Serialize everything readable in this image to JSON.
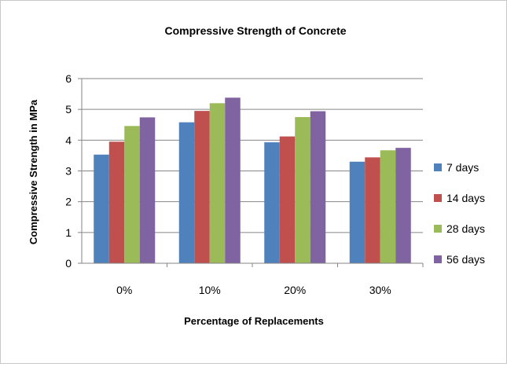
{
  "chart_data": {
    "type": "bar",
    "title": "Compressive Strength of Concrete",
    "xlabel": "Percentage of Replacements",
    "ylabel": "Compressive Strength in MPa",
    "categories": [
      "0%",
      "10%",
      "20%",
      "30%"
    ],
    "ylim": [
      0,
      6
    ],
    "yticks": [
      0,
      1,
      2,
      3,
      4,
      5,
      6
    ],
    "grid": true,
    "legend_position": "right",
    "series": [
      {
        "name": "7 days",
        "color": "#4f81bd",
        "values": [
          3.53,
          4.58,
          3.93,
          3.3
        ]
      },
      {
        "name": "14 days",
        "color": "#c0504d",
        "values": [
          3.95,
          4.95,
          4.12,
          3.44
        ]
      },
      {
        "name": "28 days",
        "color": "#9bbb59",
        "values": [
          4.46,
          5.2,
          4.75,
          3.67
        ]
      },
      {
        "name": "56 days",
        "color": "#8064a2",
        "values": [
          4.74,
          5.38,
          4.94,
          3.75
        ]
      }
    ]
  }
}
